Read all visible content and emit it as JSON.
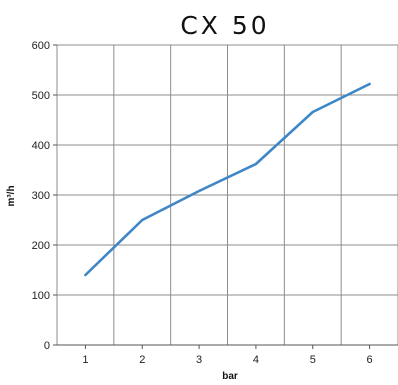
{
  "chart_data": {
    "type": "line",
    "title": "CX 50",
    "xlabel": "bar",
    "ylabel": "m³/h",
    "categories": [
      "1",
      "2",
      "3",
      "4",
      "5",
      "6"
    ],
    "x": [
      1,
      2,
      3,
      4,
      5,
      6
    ],
    "xlim": [
      0.5,
      6.5
    ],
    "ylim": [
      0,
      600
    ],
    "yticks": [
      "0",
      "100",
      "200",
      "300",
      "400",
      "500",
      "600"
    ],
    "grid": true,
    "series": [
      {
        "values": [
          140,
          250,
          308,
          362,
          466,
          522
        ],
        "color": "#3f86c6"
      }
    ]
  }
}
